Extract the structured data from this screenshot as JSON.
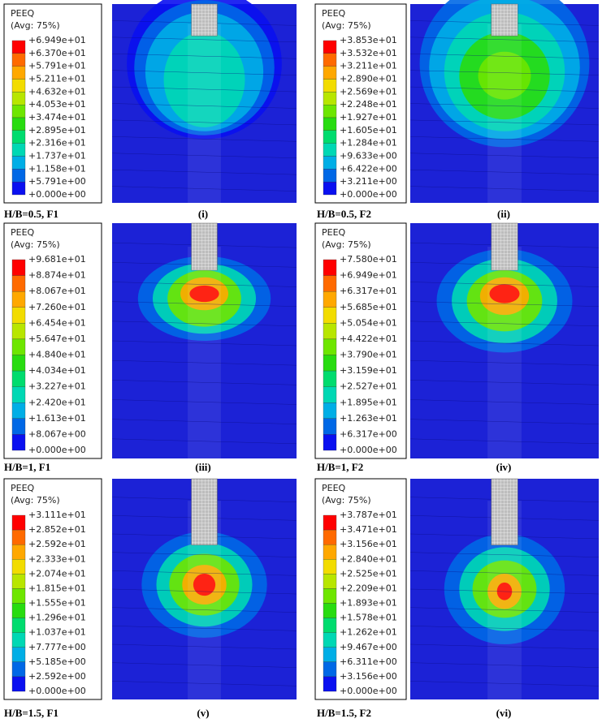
{
  "panels": [
    {
      "legend": {
        "title": "PEEQ",
        "subtitle": "(Avg: 75%)",
        "values": [
          "+6.949e+01",
          "+6.370e+01",
          "+5.791e+01",
          "+5.211e+01",
          "+4.632e+01",
          "+4.053e+01",
          "+3.474e+01",
          "+2.895e+01",
          "+2.316e+01",
          "+1.737e+01",
          "+1.158e+01",
          "+5.791e+00",
          "+0.000e+00"
        ]
      },
      "case": "H/B=0.5, F1",
      "label": "(i)"
    },
    {
      "legend": {
        "title": "PEEQ",
        "subtitle": "(Avg: 75%)",
        "values": [
          "+3.853e+01",
          "+3.532e+01",
          "+3.211e+01",
          "+2.890e+01",
          "+2.569e+01",
          "+2.248e+01",
          "+1.927e+01",
          "+1.605e+01",
          "+1.284e+01",
          "+9.633e+00",
          "+6.422e+00",
          "+3.211e+00",
          "+0.000e+00"
        ]
      },
      "case": "H/B=0.5, F2",
      "label": "(ii)"
    },
    {
      "legend": {
        "title": "PEEQ",
        "subtitle": "(Avg: 75%)",
        "values": [
          "+9.681e+01",
          "+8.874e+01",
          "+8.067e+01",
          "+7.260e+01",
          "+6.454e+01",
          "+5.647e+01",
          "+4.840e+01",
          "+4.034e+01",
          "+3.227e+01",
          "+2.420e+01",
          "+1.613e+01",
          "+8.067e+00",
          "+0.000e+00"
        ]
      },
      "case": "H/B=1, F1",
      "label": "(iii)"
    },
    {
      "legend": {
        "title": "PEEQ",
        "subtitle": "(Avg: 75%)",
        "values": [
          "+7.580e+01",
          "+6.949e+01",
          "+6.317e+01",
          "+5.685e+01",
          "+5.054e+01",
          "+4.422e+01",
          "+3.790e+01",
          "+3.159e+01",
          "+2.527e+01",
          "+1.895e+01",
          "+1.263e+01",
          "+6.317e+00",
          "+0.000e+00"
        ]
      },
      "case": "H/B=1, F2",
      "label": "(iv)"
    },
    {
      "legend": {
        "title": "PEEQ",
        "subtitle": "(Avg: 75%)",
        "values": [
          "+3.111e+01",
          "+2.852e+01",
          "+2.592e+01",
          "+2.333e+01",
          "+2.074e+01",
          "+1.815e+01",
          "+1.555e+01",
          "+1.296e+01",
          "+1.037e+01",
          "+7.777e+00",
          "+5.185e+00",
          "+2.592e+00",
          "+0.000e+00"
        ]
      },
      "case": "H/B=1.5, F1",
      "label": "(v)"
    },
    {
      "legend": {
        "title": "PEEQ",
        "subtitle": "(Avg: 75%)",
        "values": [
          "+3.787e+01",
          "+3.471e+01",
          "+3.156e+01",
          "+2.840e+01",
          "+2.525e+01",
          "+2.209e+01",
          "+1.893e+01",
          "+1.578e+01",
          "+1.262e+01",
          "+9.467e+00",
          "+6.311e+00",
          "+3.156e+00",
          "+0.000e+00"
        ]
      },
      "case": "H/B=1.5, F2",
      "label": "(vi)"
    }
  ]
}
